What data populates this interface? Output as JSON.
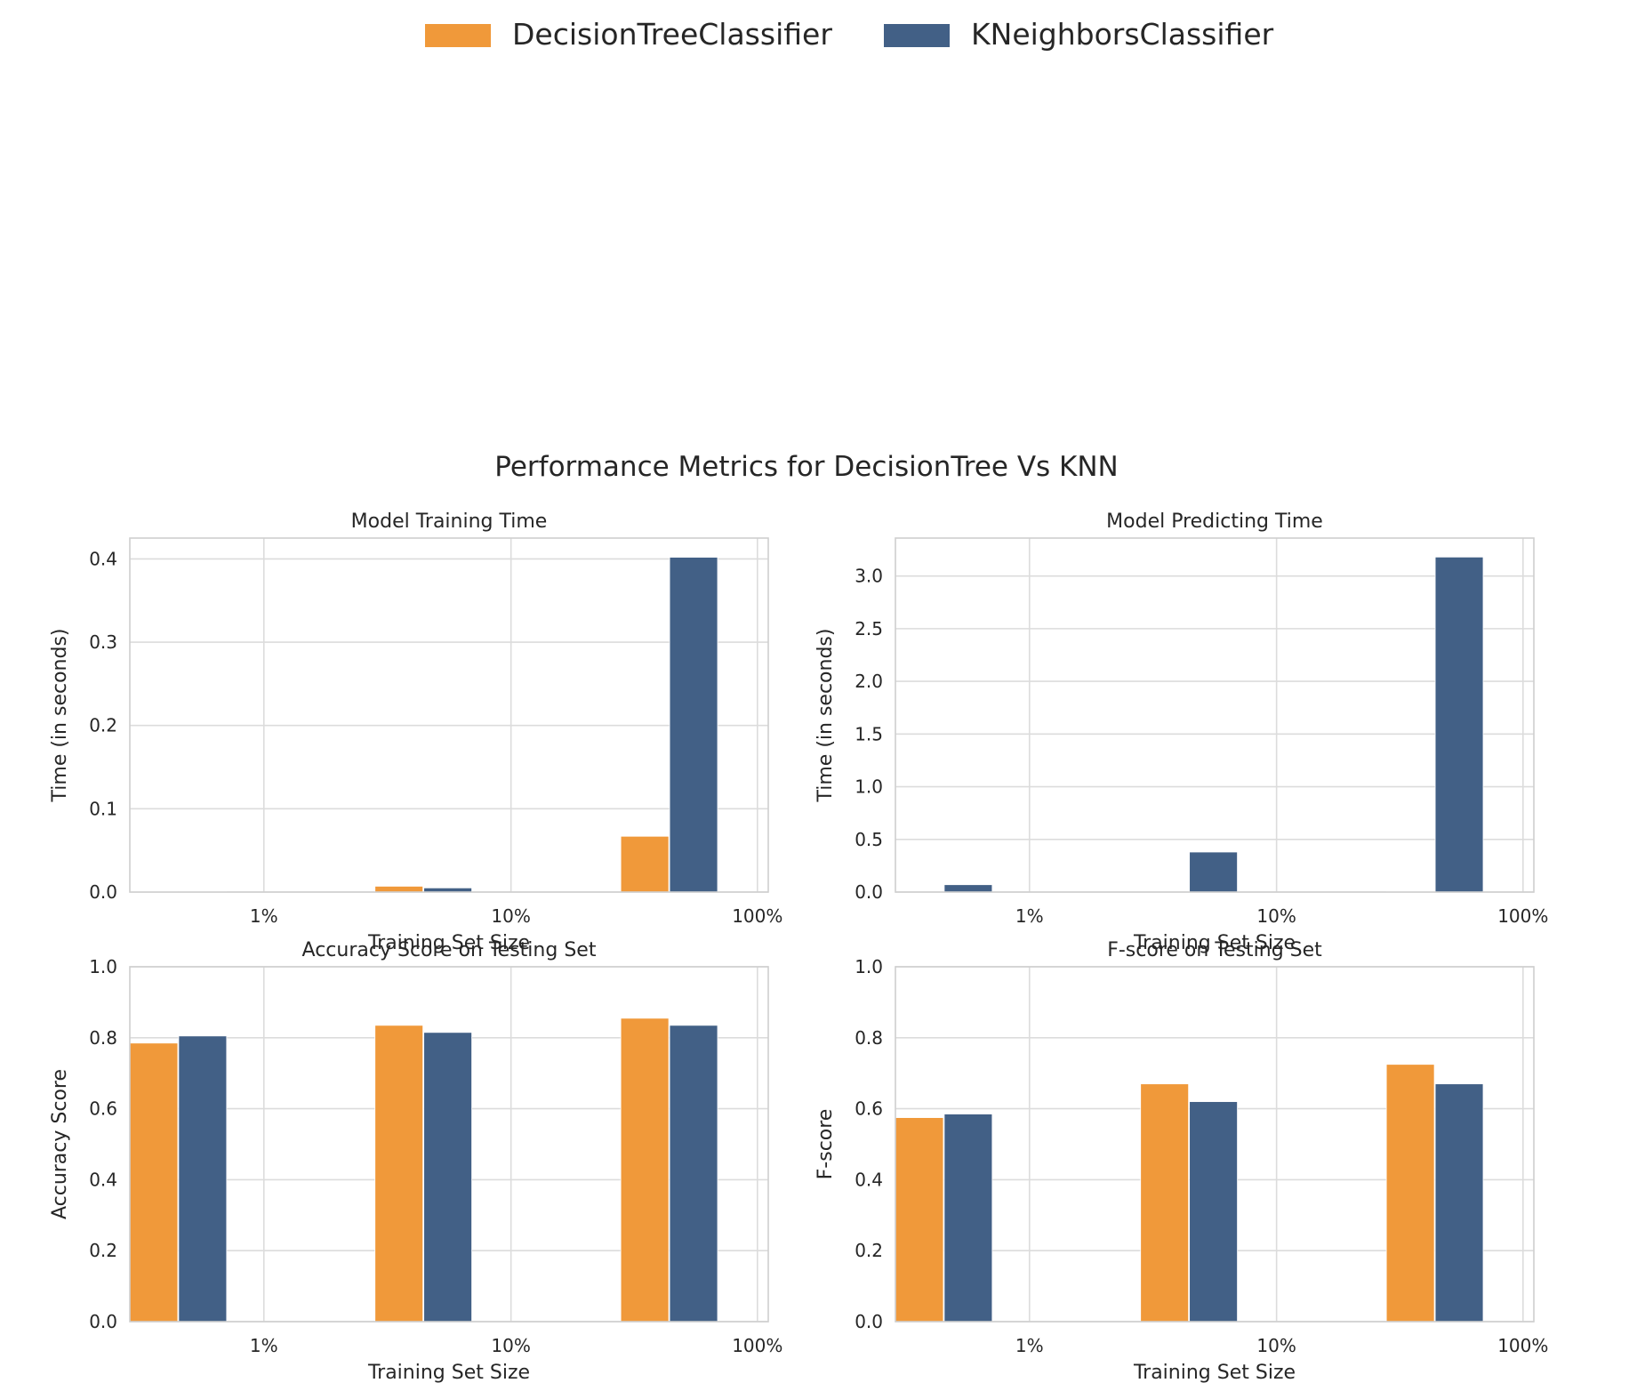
{
  "figure": {
    "title": "Performance Metrics for DecisionTree Vs KNN"
  },
  "legend": {
    "placement": "top-center",
    "entries": [
      {
        "name": "DecisionTreeClassifier",
        "color": "#f0993a"
      },
      {
        "name": "KNeighborsClassifier",
        "color": "#426086"
      }
    ]
  },
  "chart_data": [
    {
      "type": "bar",
      "title": "Model Training Time",
      "xlabel": "Training Set Size",
      "ylabel": "Time (in seconds)",
      "ylim": [
        0,
        0.425
      ],
      "yticks": [
        "0.0",
        "0.1",
        "0.2",
        "0.3",
        "0.4"
      ],
      "ytick_values": [
        0,
        0.1,
        0.2,
        0.3,
        0.4
      ],
      "xticks": [
        "1%",
        "10%",
        "100%"
      ],
      "grid": true,
      "series": [
        {
          "name": "DecisionTreeClassifier",
          "values": [
            0.0005,
            0.007,
            0.067
          ]
        },
        {
          "name": "KNeighborsClassifier",
          "values": [
            0.0005,
            0.005,
            0.402
          ]
        }
      ]
    },
    {
      "type": "bar",
      "title": "Model Predicting Time",
      "xlabel": "Training Set Size",
      "ylabel": "Time (in seconds)",
      "ylim": [
        0,
        3.36
      ],
      "yticks": [
        "0.0",
        "0.5",
        "1.0",
        "1.5",
        "2.0",
        "2.5",
        "3.0"
      ],
      "ytick_values": [
        0,
        0.5,
        1.0,
        1.5,
        2.0,
        2.5,
        3.0
      ],
      "xticks": [
        "1%",
        "10%",
        "100%"
      ],
      "grid": true,
      "series": [
        {
          "name": "DecisionTreeClassifier",
          "values": [
            0.001,
            0.002,
            0.005
          ]
        },
        {
          "name": "KNeighborsClassifier",
          "values": [
            0.07,
            0.38,
            3.18
          ]
        }
      ]
    },
    {
      "type": "bar",
      "title": "Accuracy Score on Testing Set",
      "xlabel": "Training Set Size",
      "ylabel": "Accuracy Score",
      "ylim": [
        0,
        1.0
      ],
      "yticks": [
        "0.0",
        "0.2",
        "0.4",
        "0.6",
        "0.8",
        "1.0"
      ],
      "ytick_values": [
        0,
        0.2,
        0.4,
        0.6,
        0.8,
        1.0
      ],
      "xticks": [
        "1%",
        "10%",
        "100%"
      ],
      "grid": true,
      "series": [
        {
          "name": "DecisionTreeClassifier",
          "values": [
            0.785,
            0.835,
            0.855
          ]
        },
        {
          "name": "KNeighborsClassifier",
          "values": [
            0.805,
            0.815,
            0.835
          ]
        }
      ]
    },
    {
      "type": "bar",
      "title": "F-score on Testing Set",
      "xlabel": "Training Set Size",
      "ylabel": "F-score",
      "ylim": [
        0,
        1.0
      ],
      "yticks": [
        "0.0",
        "0.2",
        "0.4",
        "0.6",
        "0.8",
        "1.0"
      ],
      "ytick_values": [
        0,
        0.2,
        0.4,
        0.6,
        0.8,
        1.0
      ],
      "xticks": [
        "1%",
        "10%",
        "100%"
      ],
      "grid": true,
      "series": [
        {
          "name": "DecisionTreeClassifier",
          "values": [
            0.575,
            0.67,
            0.725
          ]
        },
        {
          "name": "KNeighborsClassifier",
          "values": [
            0.585,
            0.62,
            0.67
          ]
        }
      ]
    }
  ]
}
